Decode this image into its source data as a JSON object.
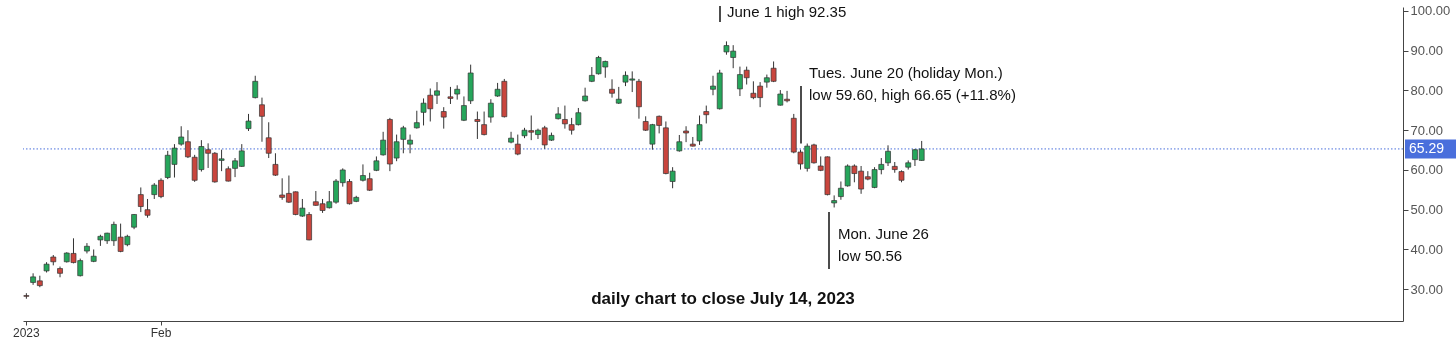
{
  "chart_data": {
    "type": "candlestick",
    "title": "daily chart to close July 14, 2023",
    "categories": [
      "2023",
      null,
      null,
      null,
      null,
      null,
      null,
      null,
      null,
      null,
      null,
      null,
      null,
      null,
      null,
      null,
      null,
      null,
      null,
      null,
      "Feb",
      null,
      null,
      null,
      null,
      null,
      null,
      null,
      null,
      null,
      null,
      null,
      null,
      null,
      null,
      null,
      null,
      null,
      null,
      null,
      null,
      null,
      null,
      null,
      null,
      null,
      null,
      null,
      null,
      null,
      null,
      null,
      null,
      null,
      null,
      null,
      null,
      null,
      null,
      null,
      null,
      null,
      null,
      null,
      null,
      null,
      null,
      null,
      null,
      null,
      null,
      null,
      null,
      null,
      null,
      null,
      null,
      null,
      null,
      null,
      null,
      null,
      null,
      null,
      null,
      null,
      null,
      null,
      null,
      null,
      null,
      null,
      null,
      null,
      null,
      null,
      null,
      null,
      null,
      null,
      null,
      null,
      null,
      null,
      null,
      null,
      null,
      null,
      null,
      null,
      null,
      null,
      null,
      null,
      null,
      null,
      null,
      null,
      null,
      null,
      null,
      null,
      null,
      null,
      null,
      null,
      null,
      null,
      null,
      null,
      null,
      null,
      null,
      null,
      null,
      null,
      null,
      null,
      null,
      null,
      null,
      null,
      null,
      null,
      null,
      null,
      null,
      null,
      null,
      null,
      null,
      null,
      null,
      null,
      null,
      null,
      null,
      null,
      null,
      null,
      null,
      null,
      null,
      null,
      null,
      null,
      null,
      null,
      null,
      null,
      null,
      null,
      null,
      null,
      null,
      null,
      null,
      null,
      null,
      null,
      null,
      null,
      null,
      null,
      null,
      null,
      null,
      null,
      null,
      null,
      null,
      null,
      null,
      null,
      null,
      null,
      null,
      null,
      null,
      null,
      null,
      null,
      null,
      null,
      null
    ],
    "ohlc": [
      [
        28.4,
        29.0,
        27.6,
        28.2
      ],
      [
        31.7,
        34.0,
        31.1,
        33.1
      ],
      [
        32.1,
        33.4,
        30.5,
        30.9
      ],
      [
        34.6,
        36.8,
        34.2,
        36.3
      ],
      [
        38.1,
        38.6,
        36.0,
        36.9
      ],
      [
        35.2,
        35.7,
        33.0,
        34.0
      ],
      [
        36.9,
        39.3,
        36.7,
        39.1
      ],
      [
        39.0,
        42.8,
        36.5,
        36.7
      ],
      [
        33.4,
        37.7,
        33.2,
        37.2
      ],
      [
        39.6,
        41.6,
        39.0,
        40.8
      ],
      [
        37.0,
        40.0,
        36.8,
        38.3
      ],
      [
        42.4,
        43.7,
        40.9,
        43.3
      ],
      [
        42.2,
        44.2,
        41.4,
        44.1
      ],
      [
        42.2,
        47.0,
        40.9,
        46.3
      ],
      [
        43.1,
        46.5,
        39.3,
        39.5
      ],
      [
        41.2,
        43.7,
        40.8,
        43.3
      ],
      [
        45.6,
        48.9,
        45.1,
        48.8
      ],
      [
        53.8,
        55.6,
        49.4,
        50.8
      ],
      [
        50.0,
        52.7,
        48.0,
        48.6
      ],
      [
        53.8,
        56.7,
        52.7,
        56.2
      ],
      [
        57.4,
        57.9,
        52.9,
        53.3
      ],
      [
        58.1,
        64.8,
        57.7,
        63.7
      ],
      [
        61.4,
        66.5,
        58.1,
        65.5
      ],
      [
        66.5,
        71.0,
        66.1,
        68.3
      ],
      [
        67.1,
        70.0,
        63.0,
        63.3
      ],
      [
        63.2,
        63.8,
        57.0,
        57.4
      ],
      [
        60.1,
        67.5,
        59.6,
        65.9
      ],
      [
        65.1,
        66.7,
        60.5,
        64.2
      ],
      [
        64.2,
        64.5,
        56.8,
        57.0
      ],
      [
        62.4,
        65.1,
        59.7,
        62.8
      ],
      [
        60.3,
        60.9,
        57.1,
        57.2
      ],
      [
        60.4,
        63.0,
        58.2,
        62.3
      ],
      [
        60.9,
        66.5,
        60.8,
        64.8
      ],
      [
        70.4,
        74.1,
        69.8,
        72.3
      ],
      [
        78.2,
        83.7,
        78.0,
        82.3
      ],
      [
        76.4,
        78.2,
        67.1,
        73.5
      ],
      [
        68.1,
        72.0,
        63.0,
        64.2
      ],
      [
        61.4,
        64.2,
        58.5,
        58.7
      ],
      [
        53.7,
        57.9,
        52.5,
        53.1
      ],
      [
        54.1,
        58.6,
        51.7,
        51.9
      ],
      [
        54.5,
        54.6,
        48.6,
        48.8
      ],
      [
        48.4,
        52.7,
        48.2,
        50.4
      ],
      [
        48.8,
        49.4,
        42.3,
        42.4
      ],
      [
        52.0,
        54.7,
        51.0,
        51.1
      ],
      [
        51.5,
        52.7,
        49.2,
        49.8
      ],
      [
        50.5,
        54.7,
        50.3,
        52.0
      ],
      [
        51.9,
        57.7,
        51.5,
        57.2
      ],
      [
        56.8,
        60.4,
        55.8,
        60.0
      ],
      [
        57.1,
        57.7,
        51.3,
        51.5
      ],
      [
        52.1,
        53.5,
        51.9,
        53.1
      ],
      [
        57.4,
        61.4,
        57.1,
        58.6
      ],
      [
        57.8,
        59.3,
        54.7,
        54.9
      ],
      [
        59.9,
        63.4,
        59.7,
        62.3
      ],
      [
        63.8,
        69.6,
        63.6,
        67.5
      ],
      [
        72.7,
        73.1,
        59.7,
        61.5
      ],
      [
        63.0,
        68.9,
        62.2,
        67.1
      ],
      [
        67.7,
        71.1,
        64.2,
        70.6
      ],
      [
        66.5,
        68.9,
        64.2,
        67.5
      ],
      [
        70.6,
        74.9,
        70.4,
        71.9
      ],
      [
        74.5,
        78.0,
        71.2,
        76.8
      ],
      [
        78.8,
        80.5,
        72.2,
        75.4
      ],
      [
        78.8,
        82.1,
        76.6,
        79.9
      ],
      [
        74.7,
        75.8,
        70.4,
        73.3
      ],
      [
        78.4,
        80.9,
        76.6,
        78.0
      ],
      [
        79.1,
        81.3,
        77.7,
        80.3
      ],
      [
        72.5,
        78.5,
        72.3,
        76.2
      ],
      [
        77.4,
        86.5,
        76.6,
        84.4
      ],
      [
        72.7,
        74.7,
        67.8,
        72.2
      ],
      [
        71.4,
        74.7,
        68.7,
        68.9
      ],
      [
        73.3,
        77.8,
        71.9,
        76.8
      ],
      [
        78.6,
        81.9,
        78.4,
        80.3
      ],
      [
        82.3,
        82.9,
        73.2,
        73.4
      ],
      [
        67.0,
        69.6,
        66.7,
        68.0
      ],
      [
        66.5,
        68.9,
        63.7,
        64.0
      ],
      [
        68.6,
        70.6,
        68.0,
        70.0
      ],
      [
        69.9,
        73.7,
        67.5,
        69.5
      ],
      [
        68.9,
        70.4,
        67.8,
        70.0
      ],
      [
        70.6,
        71.1,
        65.3,
        66.3
      ],
      [
        67.5,
        69.4,
        67.3,
        68.7
      ],
      [
        72.9,
        75.8,
        72.7,
        74.1
      ],
      [
        72.7,
        76.2,
        70.4,
        71.6
      ],
      [
        71.4,
        73.1,
        68.9,
        70.0
      ],
      [
        71.4,
        75.6,
        71.2,
        74.4
      ],
      [
        77.4,
        80.7,
        77.2,
        78.6
      ],
      [
        82.3,
        85.9,
        82.1,
        83.8
      ],
      [
        84.2,
        88.7,
        84.0,
        88.3
      ],
      [
        85.9,
        87.5,
        83.2,
        87.3
      ],
      [
        80.3,
        82.8,
        78.2,
        79.3
      ],
      [
        76.8,
        80.9,
        76.6,
        77.8
      ],
      [
        82.1,
        84.8,
        81.1,
        83.8
      ],
      [
        82.6,
        84.8,
        79.6,
        82.9
      ],
      [
        82.3,
        82.9,
        72.9,
        75.9
      ],
      [
        72.2,
        73.5,
        69.8,
        70.0
      ],
      [
        66.5,
        71.6,
        65.1,
        71.4
      ],
      [
        73.5,
        73.7,
        69.2,
        71.2
      ],
      [
        70.6,
        72.2,
        58.9,
        59.1
      ],
      [
        57.1,
        60.7,
        55.4,
        59.7
      ],
      [
        64.8,
        68.8,
        64.6,
        67.1
      ],
      [
        69.8,
        71.0,
        67.0,
        69.3
      ],
      [
        66.5,
        68.3,
        65.9,
        66.0
      ],
      [
        67.3,
        73.7,
        66.3,
        71.4
      ],
      [
        74.7,
        76.2,
        71.7,
        73.9
      ],
      [
        80.3,
        83.7,
        78.8,
        81.1
      ],
      [
        75.4,
        85.2,
        75.2,
        84.4
      ],
      [
        89.7,
        92.35,
        89.0,
        91.3
      ],
      [
        88.3,
        91.4,
        85.6,
        89.9
      ],
      [
        80.4,
        86.0,
        78.6,
        84.0
      ],
      [
        85.1,
        86.0,
        81.5,
        83.2
      ],
      [
        79.3,
        82.3,
        77.8,
        78.2
      ],
      [
        81.1,
        82.1,
        75.8,
        78.2
      ],
      [
        82.1,
        84.0,
        80.7,
        83.2
      ],
      [
        85.6,
        87.3,
        82.1,
        82.3
      ],
      [
        76.3,
        80.1,
        76.2,
        79.1
      ],
      [
        77.8,
        79.9,
        77.0,
        77.4
      ],
      [
        73.0,
        74.1,
        64.2,
        64.5
      ],
      [
        64.5,
        65.1,
        60.1,
        61.5
      ],
      [
        60.4,
        66.65,
        59.6,
        66.0
      ],
      [
        66.3,
        66.6,
        61.6,
        61.8
      ],
      [
        61.0,
        63.4,
        59.7,
        59.9
      ],
      [
        63.3,
        63.4,
        53.6,
        53.8
      ],
      [
        51.7,
        53.6,
        50.56,
        52.3
      ],
      [
        53.3,
        57.1,
        52.5,
        55.4
      ],
      [
        56.0,
        61.4,
        55.8,
        61.0
      ],
      [
        61.0,
        61.4,
        56.9,
        59.1
      ],
      [
        59.7,
        61.0,
        54.0,
        55.2
      ],
      [
        58.3,
        59.7,
        57.4,
        57.7
      ],
      [
        55.6,
        60.7,
        55.4,
        60.1
      ],
      [
        60.1,
        63.0,
        58.9,
        61.4
      ],
      [
        61.8,
        66.2,
        61.0,
        64.7
      ],
      [
        60.9,
        62.0,
        59.3,
        60.1
      ],
      [
        59.6,
        59.9,
        56.9,
        57.4
      ],
      [
        60.7,
        62.4,
        60.1,
        61.8
      ],
      [
        62.6,
        65.3,
        61.0,
        65.1
      ],
      [
        62.4,
        67.3,
        62.3,
        65.29
      ],
      null,
      null,
      null,
      null,
      null,
      null,
      null,
      null,
      null,
      null,
      null,
      null,
      null,
      null,
      null,
      null,
      null,
      null,
      null,
      null,
      null,
      null,
      null,
      null,
      null,
      null,
      null,
      null,
      null,
      null,
      null,
      null,
      null,
      null,
      null,
      null,
      null,
      null,
      null,
      null,
      null,
      null,
      null,
      null,
      null,
      null,
      null,
      null,
      null,
      null,
      null,
      null,
      null,
      null,
      null,
      null,
      null,
      null,
      null,
      null,
      null,
      null,
      null,
      null,
      null,
      null,
      null,
      null,
      null,
      null,
      null
    ],
    "colors": [
      "#c9453d",
      "#26a65b",
      "#c9453d",
      "#26a65b",
      "#c9453d",
      "#c9453d",
      "#26a65b",
      "#c9453d",
      "#26a65b",
      "#26a65b",
      "#26a65b",
      "#26a65b",
      "#26a65b",
      "#26a65b",
      "#c9453d",
      "#26a65b",
      "#26a65b",
      "#c9453d",
      "#c9453d",
      "#26a65b",
      "#c9453d",
      "#26a65b",
      "#26a65b",
      "#26a65b",
      "#c9453d",
      "#c9453d",
      "#26a65b",
      "#c9453d",
      "#c9453d",
      "#26a65b",
      "#c9453d",
      "#26a65b",
      "#26a65b",
      "#26a65b",
      "#26a65b",
      "#c9453d",
      "#c9453d",
      "#c9453d",
      "#c9453d",
      "#c9453d",
      "#c9453d",
      "#26a65b",
      "#c9453d",
      "#c9453d",
      "#c9453d",
      "#26a65b",
      "#26a65b",
      "#26a65b",
      "#c9453d",
      "#26a65b",
      "#26a65b",
      "#c9453d",
      "#26a65b",
      "#26a65b",
      "#c9453d",
      "#26a65b",
      "#26a65b",
      "#26a65b",
      "#26a65b",
      "#26a65b",
      "#c9453d",
      "#26a65b",
      "#c9453d",
      "#c9453d",
      "#26a65b",
      "#26a65b",
      "#26a65b",
      "#c9453d",
      "#c9453d",
      "#26a65b",
      "#26a65b",
      "#c9453d",
      "#26a65b",
      "#c9453d",
      "#26a65b",
      "#c9453d",
      "#26a65b",
      "#c9453d",
      "#26a65b",
      "#26a65b",
      "#c9453d",
      "#c9453d",
      "#26a65b",
      "#26a65b",
      "#26a65b",
      "#26a65b",
      "#26a65b",
      "#c9453d",
      "#26a65b",
      "#26a65b",
      "#26a65b",
      "#c9453d",
      "#c9453d",
      "#26a65b",
      "#c9453d",
      "#c9453d",
      "#26a65b",
      "#26a65b",
      "#c9453d",
      "#c9453d",
      "#26a65b",
      "#c9453d",
      "#26a65b",
      "#26a65b",
      "#26a65b",
      "#26a65b",
      "#26a65b",
      "#c9453d",
      "#c9453d",
      "#c9453d",
      "#26a65b",
      "#c9453d",
      "#26a65b",
      "#c9453d",
      "#c9453d",
      "#c9453d",
      "#26a65b",
      "#c9453d",
      "#c9453d",
      "#c9453d",
      "#26a65b",
      "#26a65b",
      "#26a65b",
      "#c9453d",
      "#c9453d",
      "#c9453d",
      "#26a65b",
      "#26a65b",
      "#26a65b",
      "#c9453d",
      "#c9453d",
      "#26a65b",
      "#26a65b",
      "#26a65b",
      null,
      null,
      null,
      null,
      null,
      null,
      null,
      null,
      null,
      null,
      null,
      null,
      null,
      null,
      null,
      null,
      null,
      null,
      null,
      null,
      null,
      null,
      null,
      null,
      null,
      null,
      null,
      null,
      null,
      null,
      null,
      null,
      null,
      null,
      null,
      null,
      null,
      null,
      null,
      null,
      null,
      null,
      null,
      null,
      null,
      null,
      null,
      null,
      null,
      null,
      null,
      null,
      null,
      null,
      null,
      null,
      null,
      null,
      null,
      null,
      null,
      null,
      null,
      null,
      null,
      null,
      null,
      null,
      null,
      null,
      null
    ],
    "ylim": [
      22,
      101
    ],
    "yticks": [
      {
        "value": 30,
        "label": "30.00"
      },
      {
        "value": 40,
        "label": "40.00"
      },
      {
        "value": 50,
        "label": "50.00"
      },
      {
        "value": 60,
        "label": "60.00"
      },
      {
        "value": 70,
        "label": "70.00"
      },
      {
        "value": 80,
        "label": "80.00"
      },
      {
        "value": 90,
        "label": "90.00"
      },
      {
        "value": 100,
        "label": "100.00"
      }
    ],
    "ref_lines": [
      {
        "axis": "y",
        "value": 65.29,
        "label": "65.29",
        "color": "#4a6fdc",
        "line_style": "dotted"
      }
    ],
    "annotations": [
      "June 1 high 92.35",
      {
        "text": "Tues. June 20 (holiday Mon.)\nlow 59.60, high 66.65 (+11.8%)",
        "y": 66.65
      },
      "Mon. June 26\nlow 50.56"
    ]
  }
}
